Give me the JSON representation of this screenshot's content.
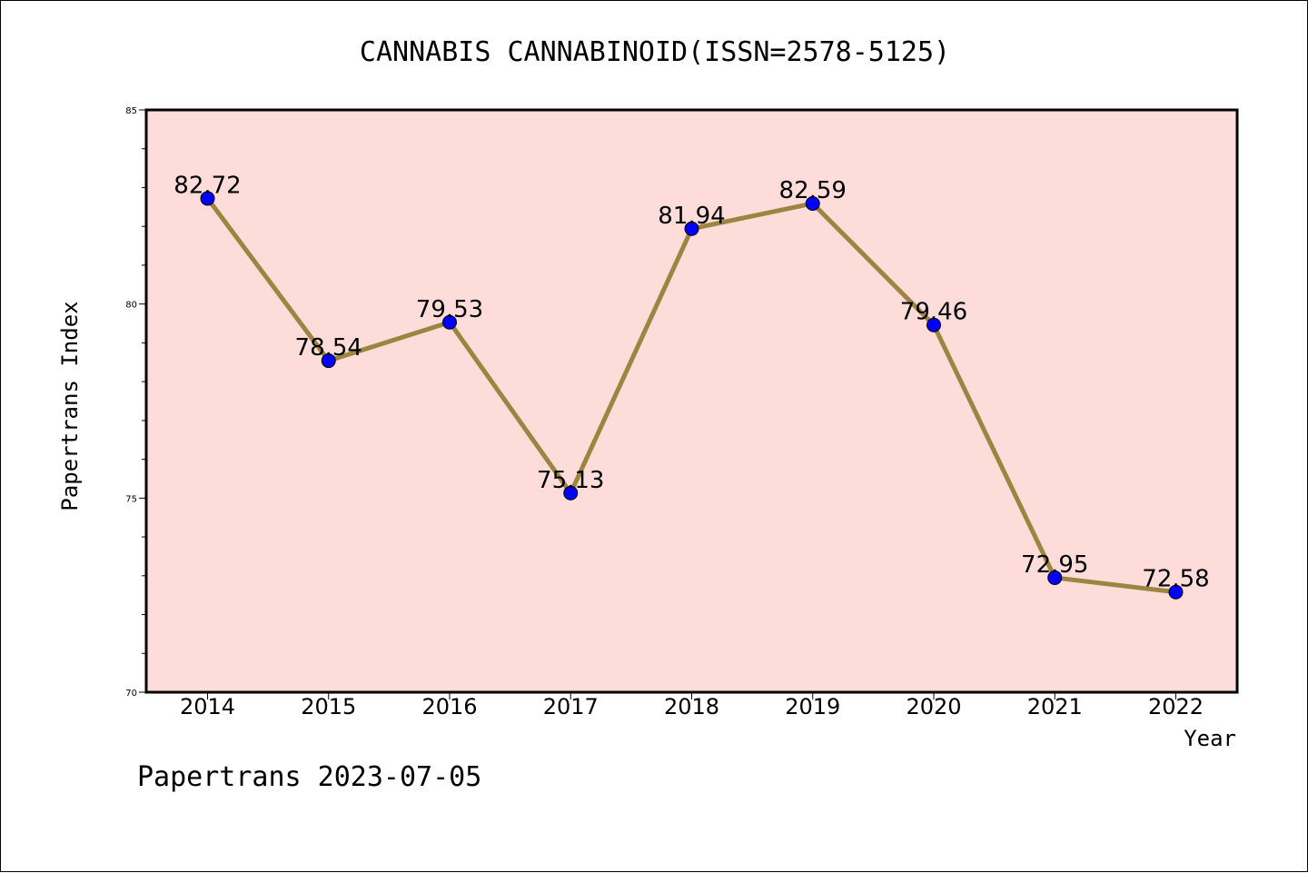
{
  "chart_data": {
    "type": "line",
    "title": "CANNABIS CANNABINOID(ISSN=2578-5125)",
    "xlabel": "Year",
    "ylabel": "Papertrans Index",
    "categories": [
      "2014",
      "2015",
      "2016",
      "2017",
      "2018",
      "2019",
      "2020",
      "2021",
      "2022"
    ],
    "values": [
      82.72,
      78.54,
      79.53,
      75.13,
      81.94,
      82.59,
      79.46,
      72.95,
      72.58
    ],
    "data_labels": [
      "82.72",
      "78.54",
      "79.53",
      "75.13",
      "81.94",
      "82.59",
      "79.46",
      "72.95",
      "72.58"
    ],
    "ylim": [
      70,
      85
    ],
    "yticks": [
      "70",
      "75",
      "80",
      "85"
    ],
    "grid": false,
    "colors": {
      "plot_background": "#fddcd9",
      "line": "#9c8540",
      "marker": "#0000ff"
    }
  },
  "footer": {
    "text": "Papertrans 2023-07-05"
  }
}
